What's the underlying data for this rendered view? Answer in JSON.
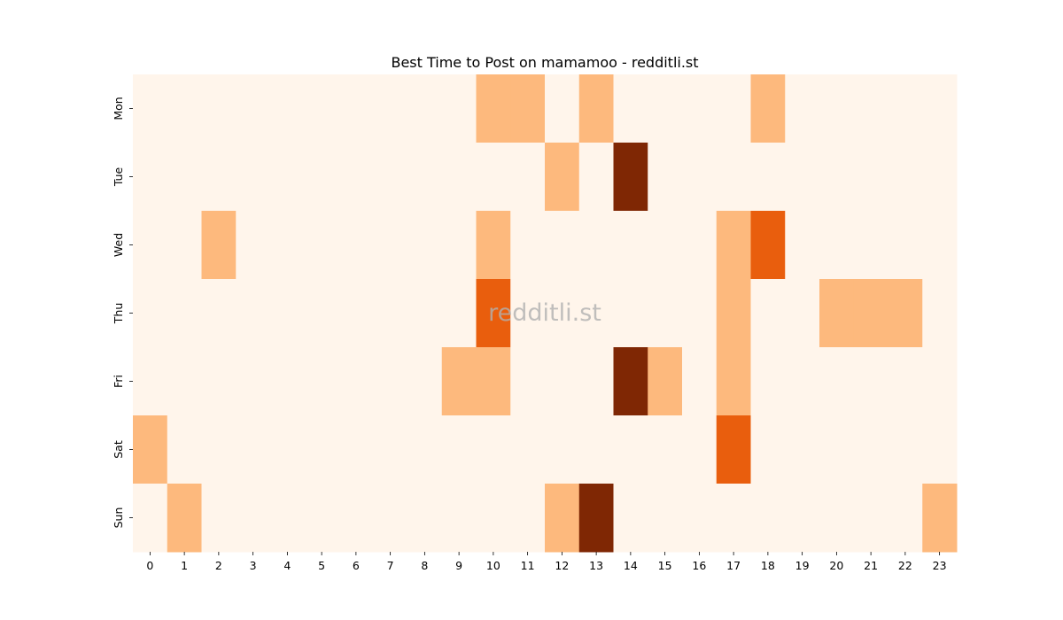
{
  "chart_data": {
    "type": "heatmap",
    "title": "Best Time to Post on mamamoo - redditli.st",
    "xlabel": "",
    "ylabel": "",
    "x_categories": [
      "0",
      "1",
      "2",
      "3",
      "4",
      "5",
      "6",
      "7",
      "8",
      "9",
      "10",
      "11",
      "12",
      "13",
      "14",
      "15",
      "16",
      "17",
      "18",
      "19",
      "20",
      "21",
      "22",
      "23"
    ],
    "y_categories": [
      "Mon",
      "Tue",
      "Wed",
      "Thu",
      "Fri",
      "Sat",
      "Sun"
    ],
    "colormap": "Oranges",
    "value_range": [
      0,
      3
    ],
    "values": [
      [
        0,
        0,
        0,
        0,
        0,
        0,
        0,
        0,
        0,
        0,
        1,
        1,
        0,
        1,
        0,
        0,
        0,
        0,
        1,
        0,
        0,
        0,
        0,
        0
      ],
      [
        0,
        0,
        0,
        0,
        0,
        0,
        0,
        0,
        0,
        0,
        0,
        0,
        1,
        0,
        3,
        0,
        0,
        0,
        0,
        0,
        0,
        0,
        0,
        0
      ],
      [
        0,
        0,
        1,
        0,
        0,
        0,
        0,
        0,
        0,
        0,
        1,
        0,
        0,
        0,
        0,
        0,
        0,
        1,
        2,
        0,
        0,
        0,
        0,
        0
      ],
      [
        0,
        0,
        0,
        0,
        0,
        0,
        0,
        0,
        0,
        0,
        2,
        0,
        0,
        0,
        0,
        0,
        0,
        1,
        0,
        0,
        1,
        1,
        1,
        0
      ],
      [
        0,
        0,
        0,
        0,
        0,
        0,
        0,
        0,
        0,
        1,
        1,
        0,
        0,
        0,
        3,
        1,
        0,
        1,
        0,
        0,
        0,
        0,
        0,
        0
      ],
      [
        1,
        0,
        0,
        0,
        0,
        0,
        0,
        0,
        0,
        0,
        0,
        0,
        0,
        0,
        0,
        0,
        0,
        2,
        0,
        0,
        0,
        0,
        0,
        0
      ],
      [
        0,
        1,
        0,
        0,
        0,
        0,
        0,
        0,
        0,
        0,
        0,
        0,
        1,
        3,
        0,
        0,
        0,
        0,
        0,
        0,
        0,
        0,
        0,
        1
      ]
    ],
    "color_levels": [
      "#fff5eb",
      "#fdb97d",
      "#e95e0d",
      "#7f2704"
    ],
    "grid": false,
    "legend": "none",
    "watermark": "redditli.st"
  }
}
